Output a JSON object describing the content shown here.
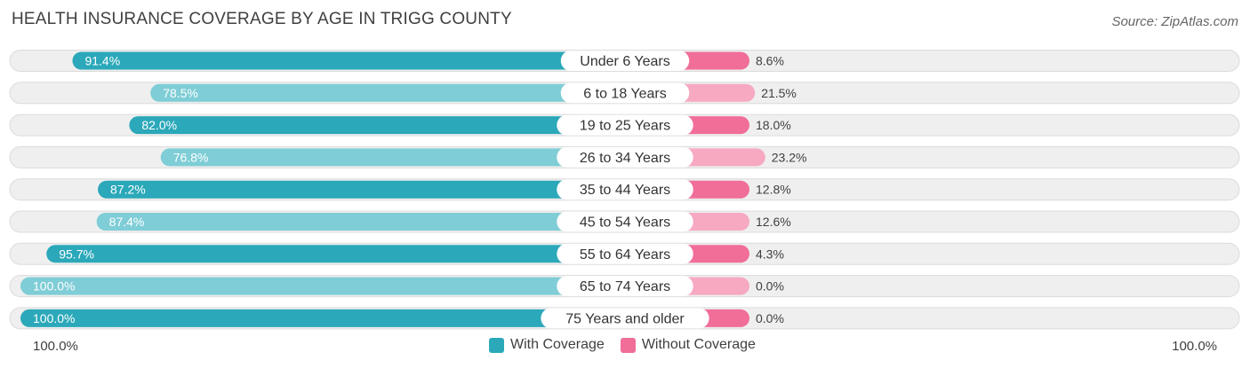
{
  "header": {
    "title": "HEALTH INSURANCE COVERAGE BY AGE IN TRIGG COUNTY",
    "source": "Source: ZipAtlas.com"
  },
  "colors": {
    "with_dark": "#2ba8b9",
    "with_light": "#7fcdd6",
    "without_dark": "#f06e98",
    "without_light": "#f6a9c1",
    "track": "#efefef"
  },
  "chart_data": {
    "type": "bar",
    "title": "HEALTH INSURANCE COVERAGE BY AGE IN TRIGG COUNTY",
    "categories": [
      "Under 6 Years",
      "6 to 18 Years",
      "19 to 25 Years",
      "26 to 34 Years",
      "35 to 44 Years",
      "45 to 54 Years",
      "55 to 64 Years",
      "65 to 74 Years",
      "75 Years and older"
    ],
    "series": [
      {
        "name": "With Coverage",
        "values": [
          91.4,
          78.5,
          82.0,
          76.8,
          87.2,
          87.4,
          95.7,
          100.0,
          100.0
        ],
        "labels": [
          "91.4%",
          "78.5%",
          "82.0%",
          "76.8%",
          "87.2%",
          "87.4%",
          "95.7%",
          "100.0%",
          "100.0%"
        ]
      },
      {
        "name": "Without Coverage",
        "values": [
          8.6,
          21.5,
          18.0,
          23.2,
          12.8,
          12.6,
          4.3,
          0.0,
          0.0
        ],
        "labels": [
          "8.6%",
          "21.5%",
          "18.0%",
          "23.2%",
          "12.8%",
          "12.6%",
          "4.3%",
          "0.0%",
          "0.0%"
        ]
      }
    ],
    "xlim": [
      0,
      100
    ],
    "axis_left_label": "100.0%",
    "axis_right_label": "100.0%",
    "legend": [
      "With Coverage",
      "Without Coverage"
    ],
    "legend_position": "bottom-center"
  }
}
